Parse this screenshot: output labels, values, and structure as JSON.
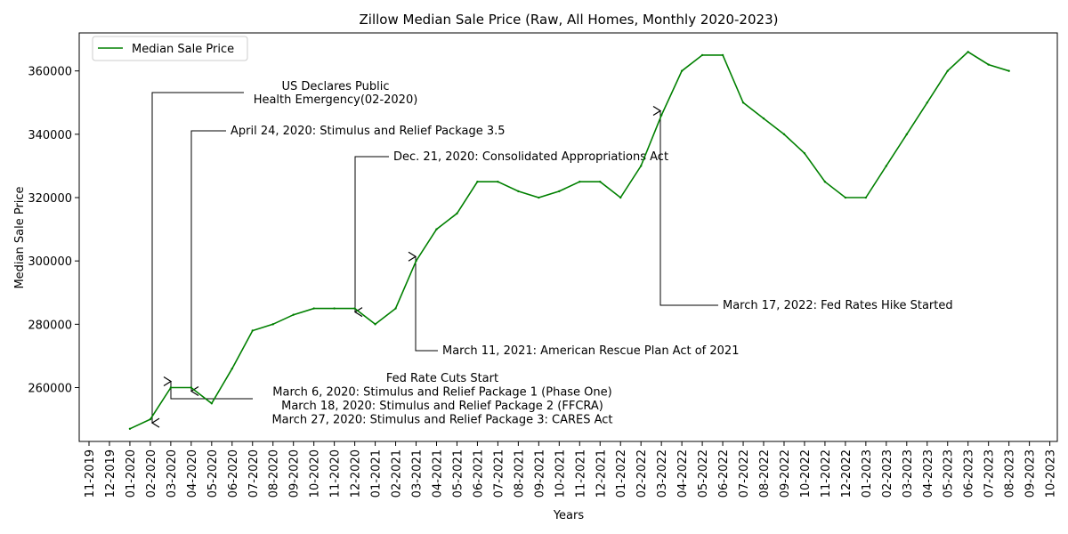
{
  "chart_data": {
    "type": "line",
    "title": "Zillow Median Sale Price (Raw, All Homes, Monthly 2020-2023)",
    "xlabel": "Years",
    "ylabel": "Median Sale Price",
    "ylim": [
      243000,
      372000
    ],
    "y_ticks": [
      260000,
      280000,
      300000,
      320000,
      340000,
      360000
    ],
    "x_tick_labels": [
      "11-2019",
      "12-2019",
      "01-2020",
      "02-2020",
      "03-2020",
      "04-2020",
      "05-2020",
      "06-2020",
      "07-2020",
      "08-2020",
      "09-2020",
      "10-2020",
      "11-2020",
      "12-2020",
      "01-2021",
      "02-2021",
      "03-2021",
      "04-2021",
      "05-2021",
      "06-2021",
      "07-2021",
      "08-2021",
      "09-2021",
      "10-2021",
      "11-2021",
      "12-2021",
      "01-2022",
      "02-2022",
      "03-2022",
      "04-2022",
      "05-2022",
      "06-2022",
      "07-2022",
      "08-2022",
      "09-2022",
      "10-2022",
      "11-2022",
      "12-2022",
      "01-2023",
      "02-2023",
      "03-2023",
      "04-2023",
      "05-2023",
      "06-2023",
      "07-2023",
      "08-2023",
      "09-2023",
      "10-2023"
    ],
    "grid": false,
    "legend_position": "upper-left",
    "series": [
      {
        "name": "Median Sale Price",
        "color": "#008000",
        "x": [
          "01-2020",
          "02-2020",
          "03-2020",
          "04-2020",
          "05-2020",
          "06-2020",
          "07-2020",
          "08-2020",
          "09-2020",
          "10-2020",
          "11-2020",
          "12-2020",
          "01-2021",
          "02-2021",
          "03-2021",
          "04-2021",
          "05-2021",
          "06-2021",
          "07-2021",
          "08-2021",
          "09-2021",
          "10-2021",
          "11-2021",
          "12-2021",
          "01-2022",
          "02-2022",
          "03-2022",
          "04-2022",
          "05-2022",
          "06-2022",
          "07-2022",
          "08-2022",
          "09-2022",
          "10-2022",
          "11-2022",
          "12-2022",
          "01-2023",
          "02-2023",
          "03-2023",
          "04-2023",
          "05-2023",
          "06-2023",
          "07-2023",
          "08-2023"
        ],
        "values": [
          247000,
          250000,
          260000,
          260000,
          255000,
          266000,
          278000,
          280000,
          283000,
          285000,
          285000,
          285000,
          280000,
          285000,
          300000,
          310000,
          315000,
          325000,
          325000,
          322000,
          320000,
          322000,
          325000,
          325000,
          320000,
          330000,
          346000,
          360000,
          365000,
          365000,
          350000,
          345000,
          340000,
          334000,
          325000,
          320000,
          320000,
          330000,
          340000,
          350000,
          360000,
          366000,
          362000,
          360000
        ]
      }
    ],
    "annotations": [
      {
        "lines": [
          "US Declares Public",
          "Health Emergency(02-2020)"
        ],
        "target_x": "02-2020",
        "target_y": 250000
      },
      {
        "lines": [
          "April 24, 2020: Stimulus and Relief Package 3.5"
        ],
        "target_x": "04-2020",
        "target_y": 260000
      },
      {
        "lines": [
          "Dec. 21, 2020: Consolidated Appropriations Act"
        ],
        "target_x": "12-2020",
        "target_y": 285000
      },
      {
        "lines": [
          "March 11, 2021: American Rescue Plan Act of 2021"
        ],
        "target_x": "03-2021",
        "target_y": 300000
      },
      {
        "lines": [
          "March 17, 2022: Fed Rates Hike Started"
        ],
        "target_x": "03-2022",
        "target_y": 346000
      },
      {
        "lines": [
          "Fed Rate Cuts Start",
          "March 6, 2020: Stimulus and Relief Package 1 (Phase One)",
          "March 18, 2020: Stimulus and Relief Package 2 (FFCRA)",
          "March 27, 2020: Stimulus and Relief Package 3: CARES Act"
        ],
        "target_x": "03-2020",
        "target_y": 260000
      }
    ]
  }
}
